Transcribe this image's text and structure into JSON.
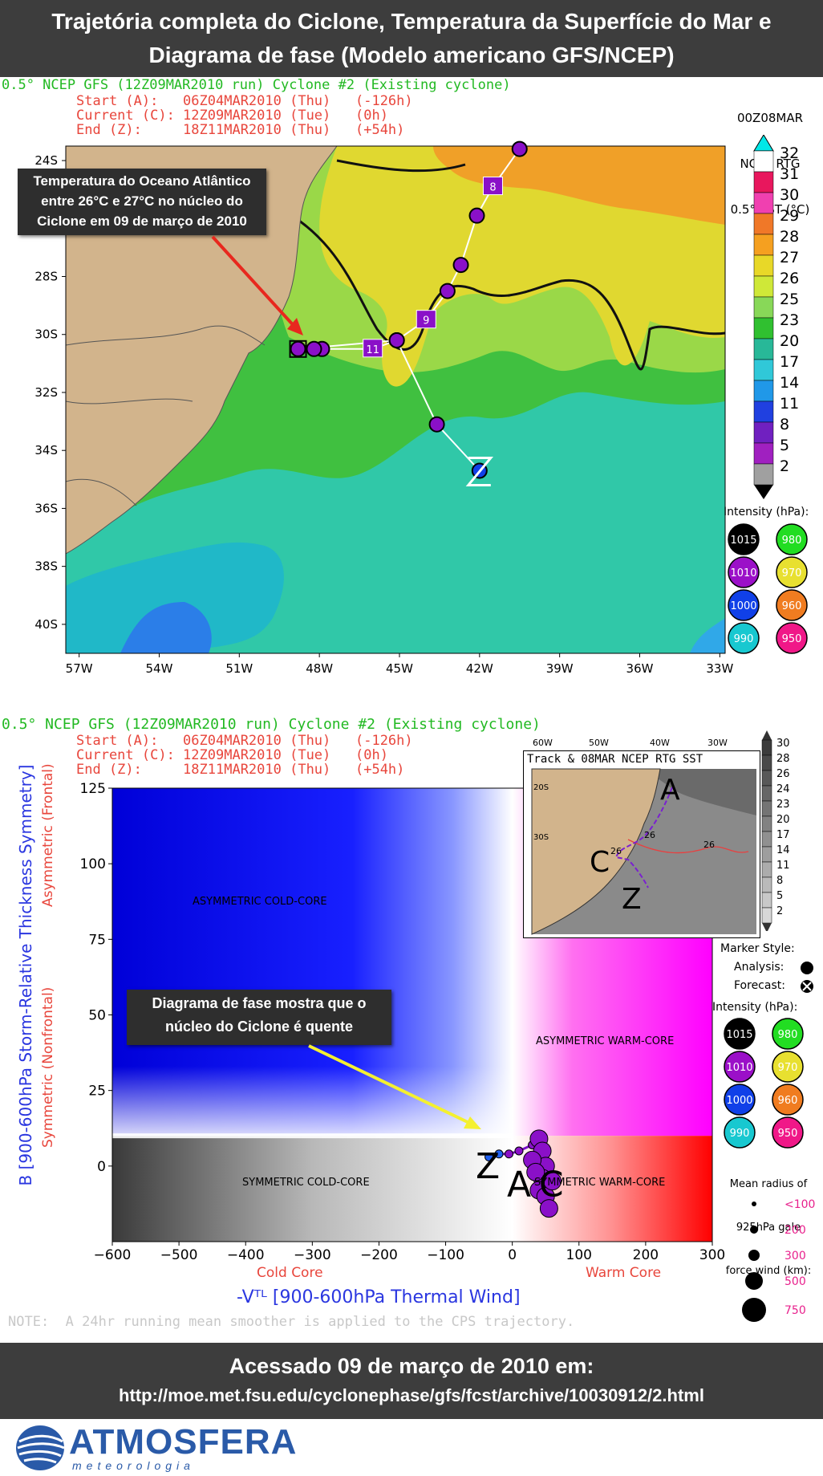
{
  "header": {
    "title_line1": "Trajetória completa do Ciclone, Temperatura da Superfície do Mar e",
    "title_line2": "Diagrama de fase (Modelo americano GFS/NCEP)"
  },
  "map_panel": {
    "run_title": "0.5° NCEP GFS (12Z09MAR2010 run) Cyclone #2 (Existing cyclone)",
    "start": "Start (A):   06Z04MAR2010 (Thu)   (-126h)",
    "current": "Current (C): 12Z09MAR2010 (Tue)   (0h)",
    "end": "End (Z):     18Z11MAR2010 (Thu)   (+54h)",
    "sst_title_1": "00Z08MAR",
    "sst_title_2": "NCEP RTG",
    "sst_title_3": "0.5° SST (°C)",
    "sst_levels": [
      "32",
      "31",
      "30",
      "29",
      "28",
      "27",
      "26",
      "25",
      "23",
      "20",
      "17",
      "14",
      "11",
      "8",
      "5",
      "2"
    ],
    "sst_colors": [
      "#ffffff",
      "#e8175d",
      "#f040b0",
      "#f07828",
      "#f5a020",
      "#e8d828",
      "#cfe838",
      "#88d858",
      "#30c030",
      "#28b898",
      "#30c8d8",
      "#2098e8",
      "#2040e0",
      "#7020c0",
      "#a020c0",
      "#a0a0a0"
    ],
    "lat_ticks": [
      "24S",
      "26S",
      "28S",
      "30S",
      "32S",
      "34S",
      "36S",
      "38S",
      "40S"
    ],
    "lon_ticks": [
      "57W",
      "54W",
      "51W",
      "48W",
      "45W",
      "42W",
      "39W",
      "36W",
      "33W"
    ],
    "track_day_labels": [
      "8",
      "9",
      "11"
    ],
    "end_marker": "Z",
    "callout": "Temperatura do Oceano Atlântico entre 26°C e 27°C no núcleo do Ciclone em 09 de março de 2010",
    "intensity_title": "Intensity (hPa):",
    "intensity": [
      {
        "label": "1015",
        "color": "#000000"
      },
      {
        "label": "980",
        "color": "#22dd22"
      },
      {
        "label": "1010",
        "color": "#9b10c8"
      },
      {
        "label": "970",
        "color": "#e8e030"
      },
      {
        "label": "1000",
        "color": "#1040e8"
      },
      {
        "label": "960",
        "color": "#f07c20"
      },
      {
        "label": "990",
        "color": "#18c8d0"
      },
      {
        "label": "950",
        "color": "#f01888"
      }
    ]
  },
  "phase_panel": {
    "run_title": "0.5° NCEP GFS (12Z09MAR2010 run) Cyclone #2 (Existing cyclone)",
    "start": "Start (A):   06Z04MAR2010 (Thu)   (-126h)",
    "current": "Current (C): 12Z09MAR2010 (Tue)   (0h)",
    "end": "End (Z):     18Z11MAR2010 (Thu)   (+54h)",
    "ylabel": "B [900-600hPa Storm-Relative Thickness Symmetry]",
    "y_asym": "Asymmetric (Frontal)",
    "y_sym": "Symmetric (Nonfrontal)",
    "xlabel": "-Vᵀᴸ [900-600hPa Thermal Wind]",
    "x_cold": "Cold Core",
    "x_warm": "Warm Core",
    "q_asym_cold": "ASYMMETRIC COLD-CORE",
    "q_asym_warm": "ASYMMETRIC WARM-CORE",
    "q_sym_cold": "SYMMETRIC COLD-CORE",
    "q_sym_warm": "SYMMETRIC WARM-CORE",
    "note": "NOTE:  A 24hr running mean smoother is applied to the CPS trajectory.",
    "callout": "Diagrama de fase mostra que o núcleo do Ciclone é quente",
    "inset": {
      "title": "Track & 08MAR NCEP RTG SST",
      "lon_ticks": [
        "60W",
        "50W",
        "40W",
        "30W"
      ],
      "lat_ticks": [
        "20S",
        "30S"
      ],
      "contour_labels": [
        "26",
        "26",
        "26"
      ],
      "letters": [
        "A",
        "C",
        "Z"
      ],
      "scale": [
        "30",
        "28",
        "26",
        "24",
        "23",
        "20",
        "17",
        "14",
        "11",
        "8",
        "5",
        "2"
      ]
    },
    "marker_style_title": "Marker Style:",
    "analysis": "Analysis:",
    "forecast": "Forecast:",
    "intensity_title": "Intensity (hPa):",
    "radius_title_1": "Mean radius of",
    "radius_title_2": "925hPa gale",
    "radius_title_3": "force wind (km):",
    "radius_labels": [
      "<100",
      "200",
      "300",
      "500",
      "750"
    ]
  },
  "footer": {
    "line1": "Acessado 09 de março de 2010 em:",
    "line2": "http://moe.met.fsu.edu/cyclonephase/gfs/fcst/archive/10030912/2.html",
    "logo_text": "ATMOSFERA",
    "logo_sub": "meteorologia"
  },
  "chart_data": [
    {
      "type": "scatter",
      "title": "0.5° NCEP GFS (12Z09MAR2010 run) Cyclone #2 (Existing cyclone)",
      "xlabel": "",
      "ylabel": "",
      "x_ticks": [
        "57W",
        "54W",
        "51W",
        "48W",
        "45W",
        "42W",
        "39W",
        "36W",
        "33W"
      ],
      "y_ticks": [
        "24S",
        "26S",
        "28S",
        "30S",
        "32S",
        "34S",
        "36S",
        "38S",
        "40S"
      ],
      "xlim": [
        -57.5,
        -32.8
      ],
      "ylim": [
        -41,
        -23.5
      ],
      "series": [
        {
          "points": [
            {
              "lon": -39.5,
              "lat": -22.5,
              "intensity": 1010
            },
            {
              "lon": -40.5,
              "lat": -23.6,
              "intensity": 1010
            },
            {
              "lon": -41.5,
              "lat": -24.9,
              "intensity": 1010,
              "label": "8"
            },
            {
              "lon": -42.1,
              "lat": -25.9,
              "intensity": 1010
            },
            {
              "lon": -42.7,
              "lat": -27.6,
              "intensity": 1010
            },
            {
              "lon": -43.2,
              "lat": -28.5,
              "intensity": 1010
            },
            {
              "lon": -44.0,
              "lat": -29.5,
              "intensity": 1010,
              "label": "9"
            },
            {
              "lon": -45.1,
              "lat": -30.2,
              "intensity": 1010
            },
            {
              "lon": -46.0,
              "lat": -30.5,
              "intensity": 1010,
              "label": "11"
            },
            {
              "lon": -47.9,
              "lat": -30.5,
              "intensity": 1010
            },
            {
              "lon": -48.2,
              "lat": -30.5,
              "intensity": 1010
            },
            {
              "lon": -48.8,
              "lat": -30.5,
              "intensity": 1010
            },
            {
              "lon": -45.1,
              "lat": -30.2,
              "intensity": 1010
            },
            {
              "lon": -43.6,
              "lat": -33.1,
              "intensity": 1010
            },
            {
              "lon": -42.0,
              "lat": -34.7,
              "intensity": 1000
            }
          ]
        }
      ]
    },
    {
      "type": "scatter",
      "xlabel": "-Vᵀᴸ [900-600hPa Thermal Wind]",
      "ylabel": "B [900-600hPa Storm-Relative Thickness Symmetry]",
      "xlim": [
        -600,
        300
      ],
      "ylim": [
        -25,
        125
      ],
      "x_ticks": [
        -600,
        -500,
        -400,
        -300,
        -200,
        -100,
        0,
        100,
        200,
        300
      ],
      "y_ticks": [
        0,
        25,
        50,
        75,
        100,
        125
      ],
      "series": [
        {
          "points": [
            {
              "x": -35,
              "y": 3
            },
            {
              "x": -20,
              "y": 4
            },
            {
              "x": -5,
              "y": 4
            },
            {
              "x": 10,
              "y": 5
            },
            {
              "x": 30,
              "y": 7
            },
            {
              "x": 40,
              "y": 9
            },
            {
              "x": 45,
              "y": 5
            },
            {
              "x": 50,
              "y": 0
            },
            {
              "x": 45,
              "y": -4
            },
            {
              "x": 40,
              "y": -8
            },
            {
              "x": 50,
              "y": -10
            },
            {
              "x": 55,
              "y": -14
            },
            {
              "x": 60,
              "y": -5
            },
            {
              "x": 30,
              "y": 2
            },
            {
              "x": 35,
              "y": -2
            }
          ]
        }
      ]
    }
  ]
}
